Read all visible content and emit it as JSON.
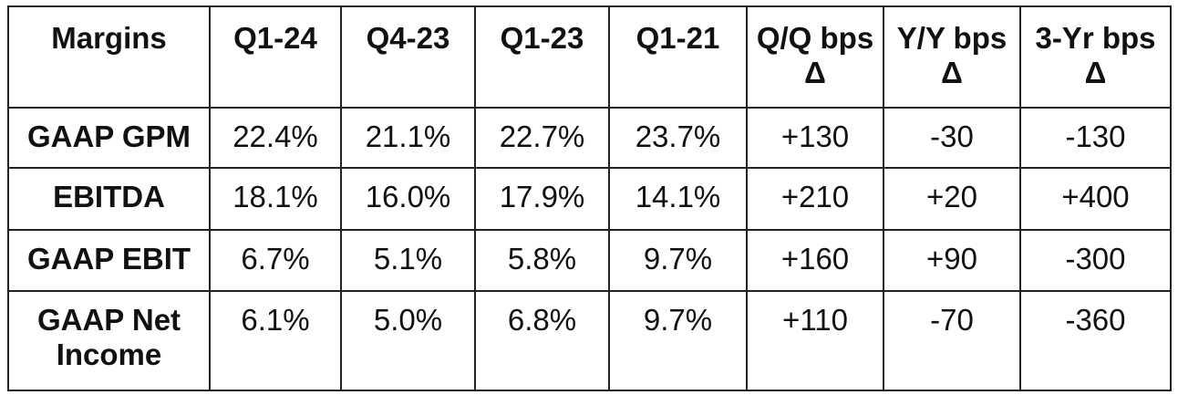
{
  "table": {
    "header": [
      "Margins",
      "Q1-24",
      "Q4-23",
      "Q1-23",
      "Q1-21",
      "Q/Q bps Δ",
      "Y/Y bps Δ",
      "3-Yr bps Δ"
    ],
    "rows": [
      [
        "GAAP GPM",
        "22.4%",
        "21.1%",
        "22.7%",
        "23.7%",
        "+130",
        "-30",
        "-130"
      ],
      [
        "EBITDA",
        "18.1%",
        "16.0%",
        "17.9%",
        "14.1%",
        "+210",
        "+20",
        "+400"
      ],
      [
        "GAAP EBIT",
        "6.7%",
        "5.1%",
        "5.8%",
        "9.7%",
        "+160",
        "+90",
        "-300"
      ],
      [
        "GAAP Net Income",
        "6.1%",
        "5.0%",
        "6.8%",
        "9.7%",
        "+110",
        "-70",
        "-360"
      ]
    ]
  }
}
